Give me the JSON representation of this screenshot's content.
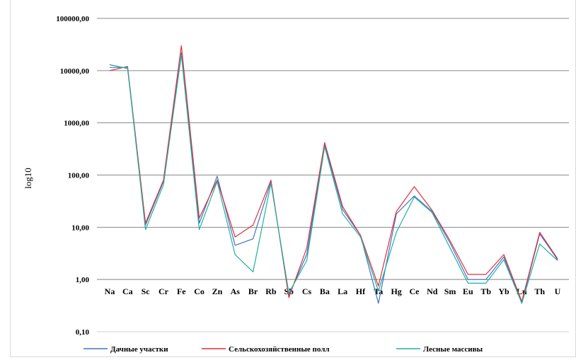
{
  "chart_data": {
    "type": "line",
    "ylabel": "log10",
    "xlabel": "",
    "title": "",
    "y_scale": "log",
    "ylim": [
      0.1,
      100000
    ],
    "y_ticks": [
      0.1,
      1,
      10,
      100,
      1000,
      10000,
      100000
    ],
    "y_tick_labels": [
      "0,10",
      "1,00",
      "10,00",
      "100,00",
      "1000,00",
      "10000,00",
      "100000,00"
    ],
    "grid": true,
    "legend_position": "bottom",
    "categories": [
      "Na",
      "Ca",
      "Sc",
      "Cr",
      "Fe",
      "Co",
      "Zn",
      "As",
      "Br",
      "Rb",
      "Sb",
      "Cs",
      "Ba",
      "La",
      "Hf",
      "Ta",
      "Hg",
      "Ce",
      "Nd",
      "Sm",
      "Eu",
      "Tb",
      "Yb",
      "Lu",
      "Th",
      "U"
    ],
    "series": [
      {
        "name": "Дачные участки",
        "color": "#4472c4",
        "values": [
          13000,
          11000,
          11,
          75,
          22000,
          12,
          95,
          4.5,
          6,
          75,
          0.5,
          3,
          380,
          22,
          7,
          0.35,
          18,
          40,
          20,
          5,
          1.0,
          1.0,
          2.7,
          0.35,
          7.5,
          2.4
        ]
      },
      {
        "name": "Сельскохозяйственные полл",
        "color": "#e0303a",
        "values": [
          10000,
          12000,
          12,
          80,
          30000,
          15,
          80,
          6.5,
          11,
          80,
          0.45,
          4,
          420,
          25,
          7,
          0.75,
          20,
          60,
          21,
          5.5,
          1.25,
          1.25,
          3,
          0.38,
          8,
          2.5
        ]
      },
      {
        "name": "Лесные массивы",
        "color": "#20b0a0",
        "values": [
          11500,
          11500,
          9,
          65,
          20000,
          9,
          75,
          3,
          1.4,
          70,
          0.55,
          2.3,
          350,
          18,
          6.5,
          0.6,
          8,
          38,
          19,
          4,
          0.85,
          0.85,
          2.4,
          0.35,
          4.8,
          2.3
        ]
      }
    ]
  }
}
